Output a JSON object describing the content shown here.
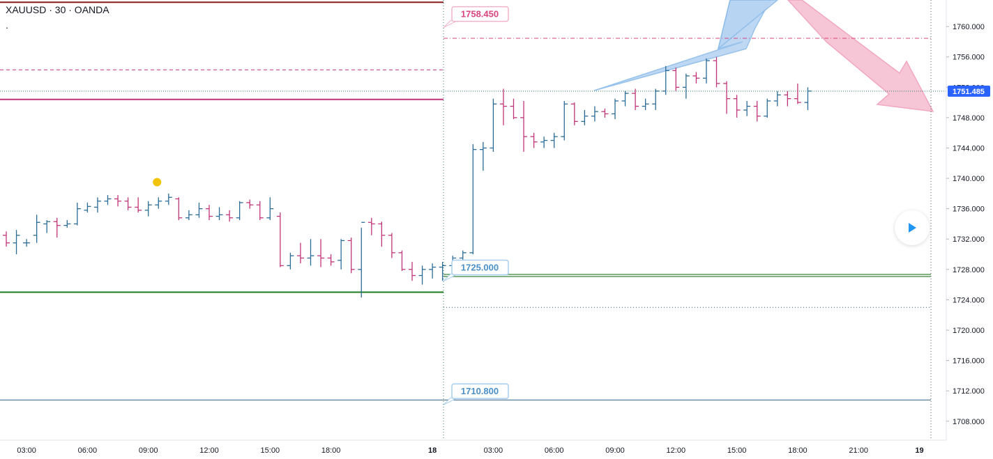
{
  "header": {
    "symbol": "XAUUSD · 30 · OANDA",
    "extra": "."
  },
  "colors": {
    "up": "#2b6c97",
    "down": "#c0357a",
    "accent_pink": "#d8457f",
    "green": "#1f7a1f",
    "navy": "#2f5d7c",
    "price_tag": "#2962ff",
    "arrow_blue": "#9cc5ee",
    "arrow_pink": "#f5b6cb",
    "marker": "#f2c400"
  },
  "chart_data": {
    "type": "bar",
    "subtype": "ohlc",
    "symbol": "XAUUSD",
    "timeframe": "30",
    "ylim": [
      1705.5,
      1763.5
    ],
    "y_ticks": [
      1708,
      1712,
      1716,
      1720,
      1724,
      1728,
      1732,
      1736,
      1740,
      1744,
      1748,
      1752,
      1756,
      1760
    ],
    "y_tick_labels": [
      "1708.000",
      "1712.000",
      "1716.000",
      "1720.000",
      "1724.000",
      "1728.000",
      "1732.000",
      "1736.000",
      "1740.000",
      "1744.000",
      "1748.000",
      "1752.000",
      "1756.000",
      "1760.000"
    ],
    "x_ticks": [
      {
        "i": 2,
        "label": "03:00"
      },
      {
        "i": 8,
        "label": "06:00"
      },
      {
        "i": 14,
        "label": "09:00"
      },
      {
        "i": 20,
        "label": "12:00"
      },
      {
        "i": 26,
        "label": "15:00"
      },
      {
        "i": 32,
        "label": "18:00"
      },
      {
        "i": 42,
        "label": "18"
      },
      {
        "i": 48,
        "label": "03:00"
      },
      {
        "i": 54,
        "label": "06:00"
      },
      {
        "i": 60,
        "label": "09:00"
      },
      {
        "i": 66,
        "label": "12:00"
      },
      {
        "i": 72,
        "label": "15:00"
      },
      {
        "i": 78,
        "label": "18:00"
      },
      {
        "i": 84,
        "label": "21:00"
      },
      {
        "i": 90,
        "label": "19"
      }
    ],
    "current_price": "1751.485",
    "current_price_value": 1751.485,
    "bars": [
      [
        1732.5,
        1733.0,
        1731.0,
        1731.5
      ],
      [
        1731.5,
        1733.2,
        1730.0,
        1732.5
      ],
      [
        1731.5,
        1732.0,
        1731.0,
        1731.5
      ],
      [
        1732.5,
        1735.2,
        1731.5,
        1734.2
      ],
      [
        1734.0,
        1734.5,
        1732.8,
        1734.3
      ],
      [
        1734.3,
        1734.8,
        1732.2,
        1733.8
      ],
      [
        1733.8,
        1734.5,
        1733.5,
        1734.0
      ],
      [
        1734.0,
        1736.8,
        1733.8,
        1736.0
      ],
      [
        1735.8,
        1736.8,
        1735.5,
        1736.3
      ],
      [
        1736.2,
        1737.5,
        1735.5,
        1737.0
      ],
      [
        1737.0,
        1737.8,
        1736.5,
        1737.3
      ],
      [
        1737.3,
        1737.8,
        1736.3,
        1737.0
      ],
      [
        1737.0,
        1737.5,
        1735.8,
        1736.2
      ],
      [
        1736.2,
        1737.5,
        1735.5,
        1735.8
      ],
      [
        1735.8,
        1737.0,
        1735.0,
        1736.5
      ],
      [
        1736.5,
        1737.5,
        1736.0,
        1737.0
      ],
      [
        1737.0,
        1738.0,
        1736.5,
        1737.5
      ],
      [
        1737.3,
        1737.5,
        1734.5,
        1734.8
      ],
      [
        1734.8,
        1735.8,
        1734.5,
        1735.2
      ],
      [
        1735.2,
        1736.8,
        1734.8,
        1736.0
      ],
      [
        1736.0,
        1736.5,
        1734.5,
        1735.0
      ],
      [
        1735.0,
        1736.2,
        1734.5,
        1735.2
      ],
      [
        1735.2,
        1735.8,
        1734.3,
        1734.8
      ],
      [
        1734.8,
        1737.0,
        1734.5,
        1736.8
      ],
      [
        1736.8,
        1737.2,
        1736.0,
        1736.5
      ],
      [
        1736.5,
        1737.0,
        1734.5,
        1734.8
      ],
      [
        1734.8,
        1737.5,
        1734.5,
        1736.0
      ],
      [
        1735.0,
        1735.5,
        1728.3,
        1728.5
      ],
      [
        1728.5,
        1730.2,
        1728.0,
        1729.8
      ],
      [
        1729.8,
        1731.5,
        1728.8,
        1729.5
      ],
      [
        1729.5,
        1732.0,
        1728.5,
        1729.8
      ],
      [
        1729.8,
        1732.0,
        1728.3,
        1729.5
      ],
      [
        1729.5,
        1730.0,
        1728.5,
        1729.0
      ],
      [
        1729.2,
        1732.0,
        1728.0,
        1731.8
      ],
      [
        1731.8,
        1732.2,
        1727.5,
        1728.0
      ],
      [
        1728.0,
        1733.5,
        1724.3,
        1734.2
      ],
      [
        1734.2,
        1734.8,
        1732.5,
        1734.0
      ],
      [
        1734.0,
        1734.3,
        1731.0,
        1732.5
      ],
      [
        1732.5,
        1732.8,
        1729.5,
        1730.2
      ],
      [
        1730.2,
        1730.5,
        1727.8,
        1728.0
      ],
      [
        1728.0,
        1729.0,
        1726.5,
        1727.2
      ],
      [
        1727.2,
        1728.5,
        1726.0,
        1728.0
      ],
      [
        1728.0,
        1728.8,
        1726.8,
        1728.3
      ],
      [
        1728.3,
        1729.0,
        1726.5,
        1728.5
      ],
      [
        1728.5,
        1729.8,
        1728.0,
        1729.5
      ],
      [
        1729.5,
        1730.5,
        1729.0,
        1730.2
      ],
      [
        1730.2,
        1744.5,
        1730.0,
        1743.8
      ],
      [
        1743.8,
        1744.8,
        1741.0,
        1744.0
      ],
      [
        1744.0,
        1750.5,
        1743.5,
        1749.8
      ],
      [
        1749.8,
        1751.8,
        1747.0,
        1749.5
      ],
      [
        1749.5,
        1750.5,
        1747.8,
        1748.0
      ],
      [
        1748.0,
        1750.2,
        1743.5,
        1745.5
      ],
      [
        1745.5,
        1746.0,
        1744.0,
        1744.8
      ],
      [
        1744.8,
        1745.5,
        1744.0,
        1745.0
      ],
      [
        1745.0,
        1746.0,
        1744.0,
        1745.5
      ],
      [
        1745.5,
        1750.2,
        1745.0,
        1749.8
      ],
      [
        1749.8,
        1750.0,
        1747.0,
        1747.5
      ],
      [
        1747.5,
        1749.0,
        1747.0,
        1748.2
      ],
      [
        1748.2,
        1749.5,
        1747.5,
        1748.8
      ],
      [
        1748.8,
        1749.2,
        1748.0,
        1748.5
      ],
      [
        1748.5,
        1750.5,
        1747.8,
        1750.2
      ],
      [
        1750.2,
        1751.5,
        1749.5,
        1751.2
      ],
      [
        1751.2,
        1751.8,
        1749.0,
        1749.5
      ],
      [
        1749.5,
        1750.5,
        1749.0,
        1749.8
      ],
      [
        1749.8,
        1751.8,
        1749.0,
        1751.5
      ],
      [
        1751.5,
        1754.8,
        1751.0,
        1754.2
      ],
      [
        1754.2,
        1754.6,
        1751.5,
        1752.0
      ],
      [
        1752.0,
        1753.8,
        1750.5,
        1753.5
      ],
      [
        1753.5,
        1754.0,
        1752.5,
        1753.2
      ],
      [
        1753.2,
        1755.8,
        1752.5,
        1755.5
      ],
      [
        1755.5,
        1756.0,
        1752.0,
        1752.5
      ],
      [
        1752.5,
        1752.8,
        1748.5,
        1750.5
      ],
      [
        1750.5,
        1751.0,
        1748.0,
        1749.0
      ],
      [
        1749.0,
        1750.2,
        1748.2,
        1749.5
      ],
      [
        1749.5,
        1750.2,
        1747.5,
        1748.2
      ],
      [
        1748.2,
        1750.5,
        1748.0,
        1750.2
      ],
      [
        1750.2,
        1751.5,
        1749.5,
        1751.0
      ],
      [
        1751.0,
        1751.5,
        1749.5,
        1750.5
      ],
      [
        1750.5,
        1752.5,
        1749.8,
        1750.0
      ],
      [
        1750.0,
        1752.0,
        1749.0,
        1751.5
      ]
    ],
    "horizontal_lines": [
      {
        "price": 1763.2,
        "color": "#8b1a1a",
        "style": "solid",
        "span": "left"
      },
      {
        "price": 1754.3,
        "color": "#c0357a",
        "style": "dashed",
        "span": "left"
      },
      {
        "price": 1750.4,
        "color": "#c0357a",
        "style": "solid",
        "span": "left"
      },
      {
        "price": 1725.0,
        "color": "#1f7a1f",
        "style": "solid",
        "span": "left"
      },
      {
        "price": 1758.45,
        "color": "#d8457f",
        "style": "dashdot",
        "span": "right"
      },
      {
        "price": 1727.2,
        "color": "#5a9a5a",
        "style": "double",
        "span": "right"
      },
      {
        "price": 1723.0,
        "color": "#2f5d7c",
        "style": "dotted",
        "span": "right"
      },
      {
        "price": 1710.8,
        "color": "#2f5d7c",
        "style": "solid",
        "span": "full"
      }
    ],
    "labels": [
      {
        "text": "1758.450",
        "price": 1761.7,
        "color": "#d8457f"
      },
      {
        "text": "1725.000",
        "price": 1728.3,
        "color": "#4a90c8"
      },
      {
        "text": "1710.800",
        "price": 1712.0,
        "color": "#4a90c8"
      }
    ],
    "marker": {
      "bar": 15,
      "price": 1739.5
    }
  }
}
